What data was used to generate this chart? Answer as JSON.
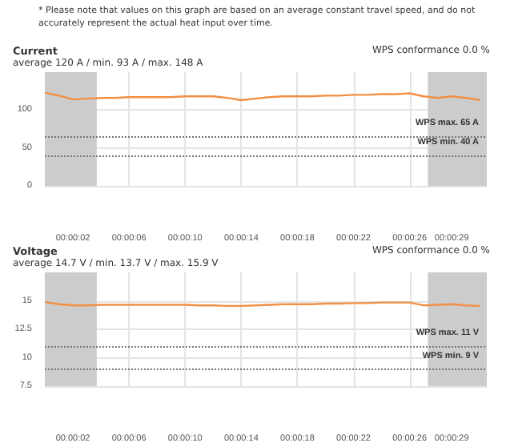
{
  "chart_data": [
    {
      "type": "line",
      "title": "Current",
      "subtitle": "average 120 A / min. 93 A / max. 148 A",
      "annotations": [
        "* Please note that values on this graph are based on an average constant travel speed, and do not accurately represent the actual heat input over time.",
        "WPS conformance 0.0 %"
      ],
      "x": [
        0,
        1,
        2,
        3,
        4,
        5,
        6,
        7,
        8,
        9,
        10,
        11,
        12,
        13,
        14,
        15,
        16,
        17,
        18,
        19,
        20,
        21,
        22,
        23,
        24,
        25,
        26,
        27,
        28,
        29,
        30,
        31
      ],
      "series": [
        {
          "color": "#f28f43",
          "values": [
            123,
            119,
            114,
            115,
            116,
            116,
            117,
            117,
            117,
            117,
            118,
            118,
            118,
            116,
            113,
            115,
            117,
            118,
            118,
            118,
            119,
            119,
            120,
            120,
            121,
            121,
            122,
            118,
            116,
            118,
            116,
            113
          ]
        }
      ],
      "xlim": [
        0,
        31.5
      ],
      "xticks": [
        {
          "value": 2,
          "label": "00:00:02"
        },
        {
          "value": 6,
          "label": "00:00:06"
        },
        {
          "value": 10,
          "label": "00:00:10"
        },
        {
          "value": 14,
          "label": "00:00:14"
        },
        {
          "value": 18,
          "label": "00:00:18"
        },
        {
          "value": 22,
          "label": "00:00:22"
        },
        {
          "value": 26,
          "label": "00:00:26"
        },
        {
          "value": 29,
          "label": "00:00:29"
        }
      ],
      "ylim": [
        0,
        150
      ],
      "yticks": [
        0,
        50,
        100
      ],
      "grid": true,
      "marker": "none",
      "ref_lines": [
        {
          "axis": "y",
          "value": 65,
          "label": "WPS max. 65 A",
          "color": "#777777",
          "line_style": "dotted"
        },
        {
          "axis": "y",
          "value": 40,
          "label": "WPS min. 40 A",
          "color": "#777777",
          "line_style": "dotted"
        }
      ],
      "bands": [
        {
          "axis": "x",
          "from": 0,
          "to": 3.7,
          "color": "#cccccc"
        },
        {
          "axis": "x",
          "from": 27.3,
          "to": 31.5,
          "color": "#cccccc"
        }
      ]
    },
    {
      "type": "line",
      "title": "Voltage",
      "subtitle": "average 14.7 V / min. 13.7 V / max. 15.9 V",
      "annotations": [
        "WPS conformance 0.0 %"
      ],
      "x": [
        0,
        1,
        2,
        3,
        4,
        5,
        6,
        7,
        8,
        9,
        10,
        11,
        12,
        13,
        14,
        15,
        16,
        17,
        18,
        19,
        20,
        21,
        22,
        23,
        24,
        25,
        26,
        27,
        28,
        29,
        30,
        31
      ],
      "series": [
        {
          "color": "#f28f43",
          "values": [
            14.9,
            14.7,
            14.6,
            14.6,
            14.65,
            14.65,
            14.65,
            14.65,
            14.65,
            14.65,
            14.65,
            14.6,
            14.6,
            14.55,
            14.55,
            14.6,
            14.65,
            14.7,
            14.7,
            14.7,
            14.75,
            14.75,
            14.8,
            14.8,
            14.85,
            14.85,
            14.85,
            14.6,
            14.65,
            14.7,
            14.6,
            14.55
          ]
        }
      ],
      "xlim": [
        0,
        31.5
      ],
      "xticks": [
        {
          "value": 2,
          "label": "00:00:02"
        },
        {
          "value": 6,
          "label": "00:00:06"
        },
        {
          "value": 10,
          "label": "00:00:10"
        },
        {
          "value": 14,
          "label": "00:00:14"
        },
        {
          "value": 18,
          "label": "00:00:18"
        },
        {
          "value": 22,
          "label": "00:00:22"
        },
        {
          "value": 26,
          "label": "00:00:26"
        },
        {
          "value": 29,
          "label": "00:00:29"
        }
      ],
      "ylim": [
        7.5,
        17.5
      ],
      "yticks": [
        7.5,
        10,
        12.5,
        15
      ],
      "grid": true,
      "marker": "none",
      "ref_lines": [
        {
          "axis": "y",
          "value": 11,
          "label": "WPS max. 11 V",
          "color": "#777777",
          "line_style": "dotted"
        },
        {
          "axis": "y",
          "value": 9,
          "label": "WPS min. 9 V",
          "color": "#777777",
          "line_style": "dotted"
        }
      ],
      "bands": [
        {
          "axis": "x",
          "from": 0,
          "to": 3.7,
          "color": "#cccccc"
        },
        {
          "axis": "x",
          "from": 27.3,
          "to": 31.5,
          "color": "#cccccc"
        }
      ]
    }
  ]
}
